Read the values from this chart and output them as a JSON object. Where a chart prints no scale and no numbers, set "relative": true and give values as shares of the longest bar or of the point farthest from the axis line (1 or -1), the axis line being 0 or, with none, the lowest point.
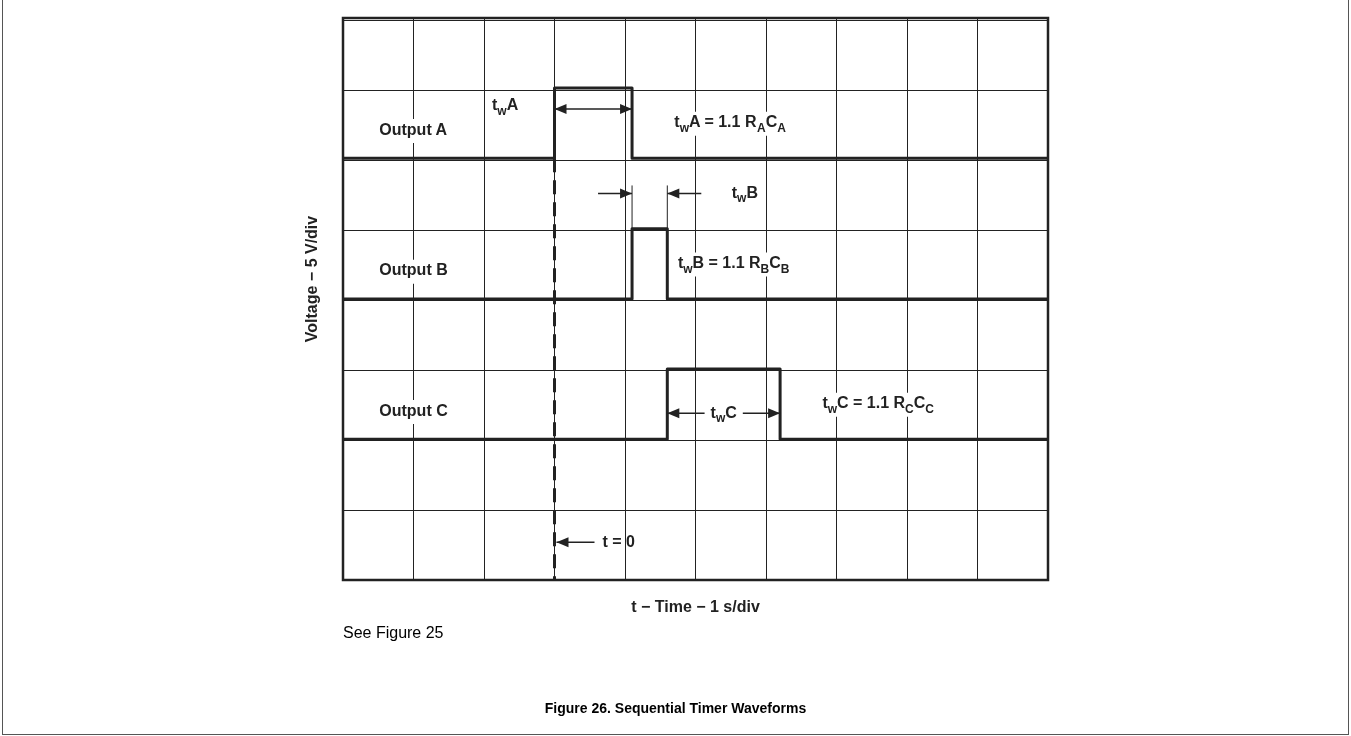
{
  "chart_data": {
    "type": "step",
    "title": "Figure 26. Sequential Timer Waveforms",
    "xlabel": "t − Time − 1 s/div",
    "ylabel": "Voltage − 5 V/div",
    "relative": true,
    "grid": true,
    "line_style": "solid",
    "categories": [
      null,
      null,
      null,
      null,
      null,
      null,
      null,
      null,
      null,
      null,
      null,
      null,
      null,
      null,
      null,
      null,
      null,
      null,
      null,
      null,
      null,
      null,
      null,
      null,
      null,
      null,
      null,
      null,
      null,
      null,
      null,
      null,
      null,
      null,
      null,
      null,
      null,
      null,
      null,
      null,
      null,
      null,
      null,
      null,
      null,
      null,
      null,
      null,
      null,
      null,
      null,
      null,
      null,
      null,
      null,
      null,
      null,
      null,
      null,
      null,
      null,
      null,
      null,
      null,
      null,
      null,
      null,
      null,
      null,
      null,
      null,
      null,
      null,
      null,
      null,
      null,
      null,
      null,
      null,
      null,
      null,
      null,
      null,
      null,
      null,
      null,
      null,
      null,
      null,
      null,
      null,
      null,
      null,
      null,
      null,
      null,
      null,
      null,
      null,
      null,
      null
    ],
    "series": [
      {
        "name": "Output A",
        "color": "#222222",
        "values": [
          0.857,
          0.857,
          0.857,
          0.857,
          0.857,
          0.857,
          0.857,
          0.857,
          0.857,
          0.857,
          0.857,
          0.857,
          0.857,
          0.857,
          0.857,
          0.857,
          0.857,
          0.857,
          0.857,
          0.857,
          0.857,
          0.857,
          0.857,
          0.857,
          0.857,
          0.857,
          0.857,
          0.857,
          0.857,
          0.857,
          1,
          1,
          1,
          1,
          1,
          1,
          1,
          1,
          1,
          1,
          1,
          0.857,
          0.857,
          0.857,
          0.857,
          0.857,
          0.857,
          0.857,
          0.857,
          0.857,
          0.857,
          0.857,
          0.857,
          0.857,
          0.857,
          0.857,
          0.857,
          0.857,
          0.857,
          0.857,
          0.857,
          0.857,
          0.857,
          0.857,
          0.857,
          0.857,
          0.857,
          0.857,
          0.857,
          0.857,
          0.857,
          0.857,
          0.857,
          0.857,
          0.857,
          0.857,
          0.857,
          0.857,
          0.857,
          0.857,
          0.857,
          0.857,
          0.857,
          0.857,
          0.857,
          0.857,
          0.857,
          0.857,
          0.857,
          0.857,
          0.857,
          0.857,
          0.857,
          0.857,
          0.857,
          0.857,
          0.857,
          0.857,
          0.857,
          0.857,
          0.857
        ]
      },
      {
        "name": "Output B",
        "color": "#222222",
        "values": [
          0.571,
          0.571,
          0.571,
          0.571,
          0.571,
          0.571,
          0.571,
          0.571,
          0.571,
          0.571,
          0.571,
          0.571,
          0.571,
          0.571,
          0.571,
          0.571,
          0.571,
          0.571,
          0.571,
          0.571,
          0.571,
          0.571,
          0.571,
          0.571,
          0.571,
          0.571,
          0.571,
          0.571,
          0.571,
          0.571,
          0.571,
          0.571,
          0.571,
          0.571,
          0.571,
          0.571,
          0.571,
          0.571,
          0.571,
          0.571,
          0.571,
          0.714,
          0.714,
          0.714,
          0.714,
          0.714,
          0.571,
          0.571,
          0.571,
          0.571,
          0.571,
          0.571,
          0.571,
          0.571,
          0.571,
          0.571,
          0.571,
          0.571,
          0.571,
          0.571,
          0.571,
          0.571,
          0.571,
          0.571,
          0.571,
          0.571,
          0.571,
          0.571,
          0.571,
          0.571,
          0.571,
          0.571,
          0.571,
          0.571,
          0.571,
          0.571,
          0.571,
          0.571,
          0.571,
          0.571,
          0.571,
          0.571,
          0.571,
          0.571,
          0.571,
          0.571,
          0.571,
          0.571,
          0.571,
          0.571,
          0.571,
          0.571,
          0.571,
          0.571,
          0.571,
          0.571,
          0.571,
          0.571,
          0.571,
          0.571,
          0.571
        ]
      },
      {
        "name": "Output C",
        "color": "#222222",
        "values": [
          0.286,
          0.286,
          0.286,
          0.286,
          0.286,
          0.286,
          0.286,
          0.286,
          0.286,
          0.286,
          0.286,
          0.286,
          0.286,
          0.286,
          0.286,
          0.286,
          0.286,
          0.286,
          0.286,
          0.286,
          0.286,
          0.286,
          0.286,
          0.286,
          0.286,
          0.286,
          0.286,
          0.286,
          0.286,
          0.286,
          0.286,
          0.286,
          0.286,
          0.286,
          0.286,
          0.286,
          0.286,
          0.286,
          0.286,
          0.286,
          0.286,
          0.286,
          0.286,
          0.286,
          0.286,
          0.286,
          0.429,
          0.429,
          0.429,
          0.429,
          0.429,
          0.429,
          0.429,
          0.429,
          0.429,
          0.429,
          0.429,
          0.429,
          0.429,
          0.429,
          0.429,
          0.429,
          0.286,
          0.286,
          0.286,
          0.286,
          0.286,
          0.286,
          0.286,
          0.286,
          0.286,
          0.286,
          0.286,
          0.286,
          0.286,
          0.286,
          0.286,
          0.286,
          0.286,
          0.286,
          0.286,
          0.286,
          0.286,
          0.286,
          0.286,
          0.286,
          0.286,
          0.286,
          0.286,
          0.286,
          0.286,
          0.286,
          0.286,
          0.286,
          0.286,
          0.286,
          0.286,
          0.286,
          0.286,
          0.286,
          0.286
        ]
      }
    ],
    "ref_lines": [
      {
        "axis": "x",
        "label": "t = 0",
        "line_style": "dashed",
        "color": "#222222"
      }
    ],
    "annotations": [
      "t$_{w}$A",
      "t$_{w}$A = 1.1 R$_{A}$C$_{A}$",
      "t$_{w}$B",
      "t$_{w}$B = 1.1 R$_{B}$C$_{B}$",
      "t$_{w}$C",
      "t$_{w}$C = 1.1 R$_{C}$C$_{C}$",
      "See Figure 25"
    ]
  }
}
